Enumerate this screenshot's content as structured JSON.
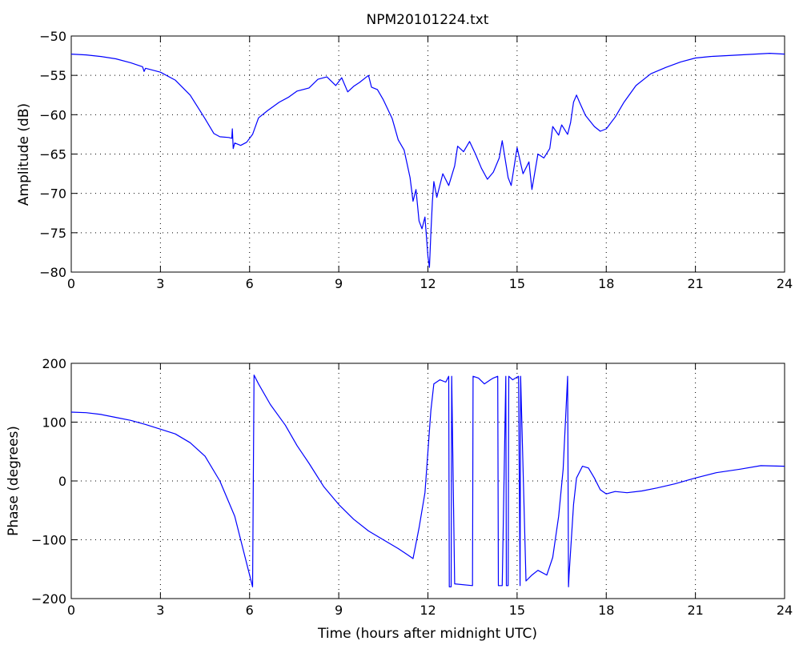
{
  "chart_data": [
    {
      "type": "line",
      "title": "NPM20101224.txt",
      "xlabel": "",
      "ylabel": "Amplitude (dB)",
      "xlim": [
        0,
        24
      ],
      "ylim": [
        -80,
        -50
      ],
      "xticks": [
        "0",
        "3",
        "6",
        "9",
        "12",
        "15",
        "18",
        "21",
        "24"
      ],
      "yticks": [
        "−50",
        "−55",
        "−60",
        "−65",
        "−70",
        "−75",
        "−80"
      ],
      "grid": true,
      "line_color": "#0000ff",
      "series": [
        {
          "x": [
            0,
            0.5,
            1,
            1.5,
            2,
            2.4,
            2.45,
            2.5,
            3,
            3.5,
            4,
            4.5,
            4.8,
            5,
            5.3,
            5.4,
            5.42,
            5.45,
            5.5,
            5.7,
            5.9,
            6.1,
            6.3,
            6.6,
            7,
            7.3,
            7.6,
            8,
            8.3,
            8.6,
            8.9,
            9.1,
            9.3,
            9.5,
            9.7,
            10,
            10.1,
            10.3,
            10.5,
            10.8,
            11,
            11.2,
            11.4,
            11.5,
            11.6,
            11.7,
            11.8,
            11.9,
            12,
            12.05,
            12.1,
            12.15,
            12.2,
            12.3,
            12.5,
            12.7,
            12.9,
            13,
            13.2,
            13.4,
            13.6,
            13.8,
            14,
            14.2,
            14.4,
            14.5,
            14.7,
            14.8,
            15,
            15.2,
            15.4,
            15.5,
            15.7,
            15.9,
            16.1,
            16.2,
            16.4,
            16.5,
            16.7,
            16.8,
            16.9,
            17,
            17.1,
            17.3,
            17.6,
            17.8,
            18,
            18.3,
            18.6,
            19,
            19.5,
            20,
            20.5,
            21,
            21.5,
            22,
            22.5,
            23,
            23.5,
            24
          ],
          "y": [
            -52.3,
            -52.4,
            -52.6,
            -52.9,
            -53.4,
            -53.9,
            -54.5,
            -54.1,
            -54.6,
            -55.6,
            -57.5,
            -60.5,
            -62.4,
            -62.8,
            -62.9,
            -63.0,
            -61.8,
            -64.3,
            -63.6,
            -63.9,
            -63.5,
            -62.5,
            -60.4,
            -59.5,
            -58.4,
            -57.8,
            -57.0,
            -56.6,
            -55.5,
            -55.2,
            -56.3,
            -55.3,
            -57.1,
            -56.4,
            -55.9,
            -55.0,
            -56.5,
            -56.8,
            -58.1,
            -60.5,
            -63.2,
            -64.5,
            -68.0,
            -71.0,
            -69.5,
            -73.5,
            -74.5,
            -73.0,
            -78.0,
            -79.4,
            -75.0,
            -71.0,
            -68.5,
            -70.5,
            -67.5,
            -69.0,
            -66.5,
            -64.0,
            -64.7,
            -63.4,
            -65.0,
            -66.8,
            -68.2,
            -67.3,
            -65.5,
            -63.3,
            -68.0,
            -69.0,
            -64.2,
            -67.5,
            -66.0,
            -69.5,
            -65.0,
            -65.5,
            -64.3,
            -61.5,
            -62.6,
            -61.3,
            -62.5,
            -61.0,
            -58.4,
            -57.5,
            -58.4,
            -60.1,
            -61.5,
            -62.1,
            -61.8,
            -60.3,
            -58.4,
            -56.3,
            -54.8,
            -54.0,
            -53.3,
            -52.8,
            -52.6,
            -52.5,
            -52.4,
            -52.3,
            -52.2,
            -52.3
          ]
        }
      ]
    },
    {
      "type": "line",
      "title": "",
      "xlabel": "Time (hours after midnight UTC)",
      "ylabel": "Phase (degrees)",
      "xlim": [
        0,
        24
      ],
      "ylim": [
        -200,
        200
      ],
      "xticks": [
        "0",
        "3",
        "6",
        "9",
        "12",
        "15",
        "18",
        "21",
        "24"
      ],
      "yticks": [
        "200",
        "100",
        "0",
        "−100",
        "−200"
      ],
      "grid": true,
      "line_color": "#0000ff",
      "series": [
        {
          "x": [
            0,
            0.5,
            1,
            1.5,
            2,
            2.5,
            3,
            3.5,
            4,
            4.5,
            5,
            5.5,
            6.1,
            6.15,
            6.3,
            6.7,
            7.2,
            7.6,
            8,
            8.5,
            9,
            9.5,
            10,
            10.5,
            11,
            11.3,
            11.5,
            11.7,
            11.9,
            12,
            12.1,
            12.2,
            12.4,
            12.6,
            12.7,
            12.72,
            12.78,
            12.8,
            12.9,
            13.5,
            13.52,
            13.7,
            13.9,
            14.1,
            14.2,
            14.35,
            14.37,
            14.5,
            14.62,
            14.64,
            14.7,
            14.72,
            14.85,
            14.95,
            15.05,
            15.1,
            15.12,
            15.3,
            15.5,
            15.7,
            16,
            16.2,
            16.4,
            16.55,
            16.7,
            16.73,
            16.75,
            16.9,
            17,
            17.2,
            17.4,
            17.6,
            17.8,
            18,
            18.3,
            18.7,
            19.2,
            19.7,
            20.3,
            21,
            21.7,
            22.5,
            23.2,
            24
          ],
          "y": [
            117,
            116,
            113,
            108,
            103,
            96,
            88,
            80,
            65,
            42,
            0,
            -60,
            -180,
            180,
            165,
            130,
            95,
            60,
            30,
            -10,
            -40,
            -65,
            -85,
            -100,
            -115,
            -125,
            -132,
            -80,
            -20,
            50,
            120,
            165,
            172,
            168,
            178,
            -180,
            -180,
            178,
            -175,
            -178,
            178,
            175,
            165,
            172,
            175,
            178,
            -178,
            -178,
            178,
            -178,
            -178,
            178,
            172,
            175,
            178,
            -178,
            178,
            -170,
            -160,
            -152,
            -160,
            -130,
            -60,
            20,
            178,
            -180,
            -160,
            -40,
            5,
            25,
            22,
            5,
            -15,
            -22,
            -18,
            -20,
            -17,
            -12,
            -5,
            5,
            14,
            20,
            26,
            25
          ]
        }
      ]
    }
  ]
}
